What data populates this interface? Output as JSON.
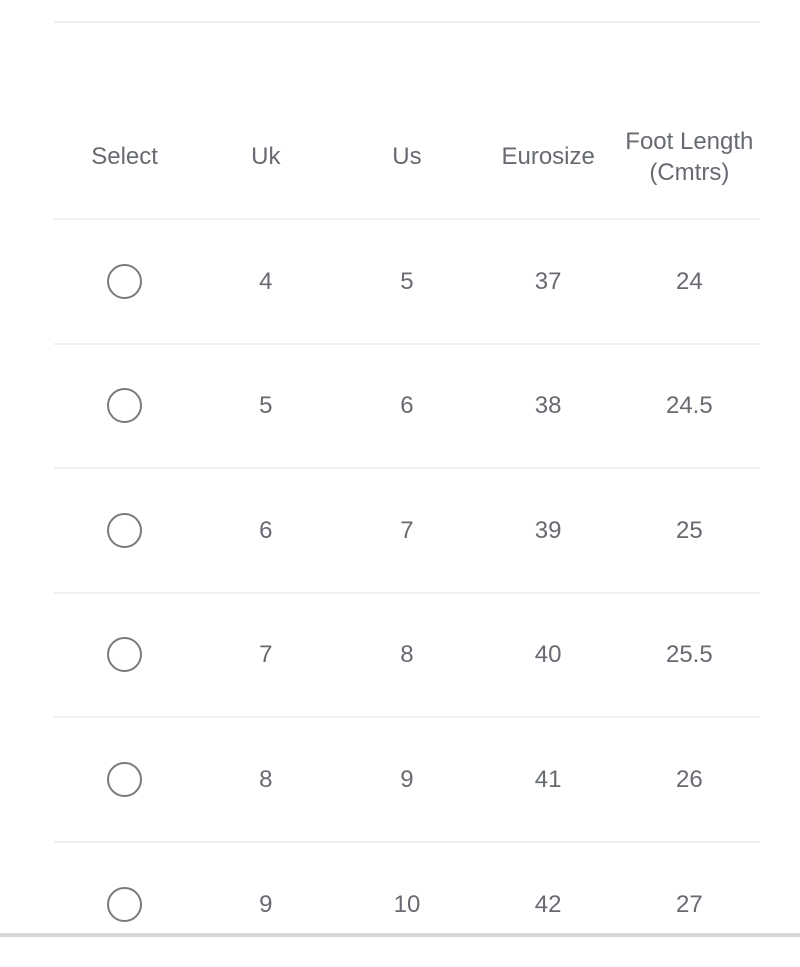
{
  "table": {
    "headers": [
      "Select",
      "Uk",
      "Us",
      "Eurosize",
      "Foot Length (Cmtrs)"
    ],
    "rows": [
      {
        "uk": "4",
        "us": "5",
        "euro": "37",
        "foot": "24",
        "selected": false
      },
      {
        "uk": "5",
        "us": "6",
        "euro": "38",
        "foot": "24.5",
        "selected": false
      },
      {
        "uk": "6",
        "us": "7",
        "euro": "39",
        "foot": "25",
        "selected": false
      },
      {
        "uk": "7",
        "us": "8",
        "euro": "40",
        "foot": "25.5",
        "selected": false
      },
      {
        "uk": "8",
        "us": "9",
        "euro": "41",
        "foot": "26",
        "selected": false
      },
      {
        "uk": "9",
        "us": "10",
        "euro": "42",
        "foot": "27",
        "selected": false
      }
    ]
  }
}
